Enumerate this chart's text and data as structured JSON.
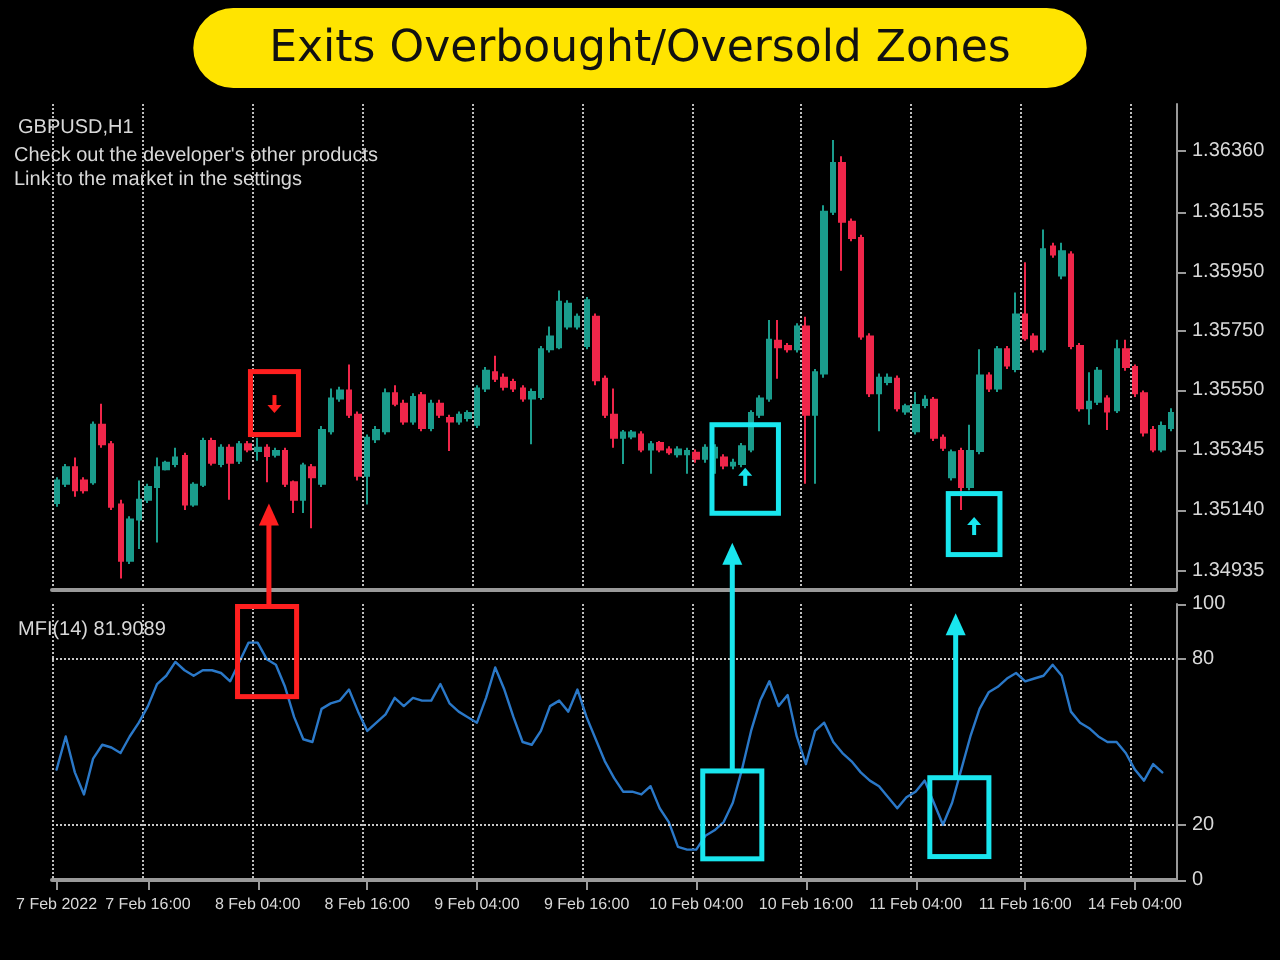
{
  "chart_data": [
    {
      "type": "candlestick",
      "title": "Exits Overbought/Oversold Zones",
      "subtitle": "GBPUSD,H1",
      "annotations": [
        "Check out the developer's other products",
        "Link to the market in the settings"
      ],
      "categories": [
        null,
        null,
        null,
        null,
        null,
        null,
        null,
        null,
        null,
        null,
        null,
        null,
        null,
        null,
        null,
        null,
        null,
        null,
        null,
        null,
        null,
        null,
        null,
        null,
        null,
        null,
        null,
        null,
        null,
        null,
        null,
        null,
        null,
        null,
        null,
        null,
        null,
        null,
        null,
        null,
        null,
        null,
        null,
        null,
        null,
        null,
        null,
        null,
        null,
        null,
        null,
        null,
        null,
        null,
        null,
        null,
        null,
        null,
        null,
        null,
        null,
        null,
        null,
        null,
        null,
        null,
        null,
        null,
        null,
        null,
        null,
        null,
        null,
        null,
        null,
        null,
        null,
        null,
        null,
        null,
        null,
        null,
        null,
        null,
        null,
        null,
        null,
        null,
        null,
        null,
        null,
        null,
        null,
        null,
        null,
        null,
        null,
        null,
        null,
        null,
        null,
        null,
        null,
        null,
        null,
        null,
        null,
        null,
        null,
        null,
        null,
        null,
        null,
        null,
        null,
        null,
        null,
        null,
        null,
        null,
        null,
        null,
        null
      ],
      "ohlc": [
        [
          1.35165,
          1.35253,
          1.35153,
          1.35242
        ],
        [
          1.35231,
          1.35298,
          1.3522,
          1.35287
        ],
        [
          1.35287,
          1.3532,
          1.35187,
          1.35209
        ],
        [
          1.35242,
          1.35253,
          1.35198,
          1.35209
        ],
        [
          1.35236,
          1.35442,
          1.35227,
          1.35431
        ],
        [
          1.35431,
          1.35502,
          1.35353,
          1.35365
        ],
        [
          1.35365,
          1.35376,
          1.35142,
          1.35153
        ],
        [
          1.3516,
          1.35176,
          1.34909,
          1.34969
        ],
        [
          1.34969,
          1.3512,
          1.34958,
          1.35109
        ],
        [
          1.35109,
          1.35242,
          1.35009,
          1.35176
        ],
        [
          1.35176,
          1.35231,
          1.35165,
          1.3522
        ],
        [
          1.3522,
          1.3532,
          1.35031,
          1.35287
        ],
        [
          1.3528,
          1.35309,
          1.35276,
          1.35302
        ],
        [
          1.35298,
          1.35353,
          1.35287,
          1.3532
        ],
        [
          1.35325,
          1.35336,
          1.35142,
          1.3516
        ],
        [
          1.3516,
          1.35236,
          1.35153,
          1.35227
        ],
        [
          1.35227,
          1.35387,
          1.3522,
          1.35376
        ],
        [
          1.35376,
          1.35387,
          1.35293,
          1.35302
        ],
        [
          1.35298,
          1.35365,
          1.35287,
          1.35353
        ],
        [
          1.35353,
          1.35365,
          1.35176,
          1.35302
        ],
        [
          1.35309,
          1.35376,
          1.35298,
          1.35365
        ],
        [
          1.35365,
          1.35376,
          1.35338,
          1.35347
        ],
        [
          1.35342,
          1.35387,
          1.35309,
          1.35353
        ],
        [
          1.35353,
          1.35365,
          1.35236,
          1.35325
        ],
        [
          1.35329,
          1.35353,
          1.3532,
          1.35342
        ],
        [
          1.35342,
          1.35353,
          1.3522,
          1.35231
        ],
        [
          1.35236,
          1.35242,
          1.35131,
          1.35176
        ],
        [
          1.35176,
          1.35302,
          1.35131,
          1.35293
        ],
        [
          1.35287,
          1.35298,
          1.3508,
          1.35253
        ],
        [
          1.35231,
          1.35427,
          1.3522,
          1.35413
        ],
        [
          1.35409,
          1.35554,
          1.35398,
          1.3552
        ],
        [
          1.3552,
          1.3556,
          1.35509,
          1.35547
        ],
        [
          1.35547,
          1.35636,
          1.35454,
          1.35465
        ],
        [
          1.35465,
          1.35476,
          1.35242,
          1.35258
        ],
        [
          1.35258,
          1.35398,
          1.3516,
          1.35387
        ],
        [
          1.35382,
          1.35427,
          1.35369,
          1.35413
        ],
        [
          1.35409,
          1.35554,
          1.35398,
          1.35538
        ],
        [
          1.35538,
          1.35565,
          1.35494,
          1.35502
        ],
        [
          1.35502,
          1.35516,
          1.35431,
          1.35442
        ],
        [
          1.35442,
          1.35538,
          1.35431,
          1.35525
        ],
        [
          1.35531,
          1.35542,
          1.35409,
          1.3542
        ],
        [
          1.3542,
          1.35516,
          1.35409,
          1.35502
        ],
        [
          1.35502,
          1.35516,
          1.35454,
          1.35465
        ],
        [
          1.35454,
          1.35465,
          1.35342,
          1.35442
        ],
        [
          1.35442,
          1.35476,
          1.35431,
          1.35465
        ],
        [
          1.35454,
          1.3548,
          1.35442,
          1.35471
        ],
        [
          1.35431,
          1.35565,
          1.3542,
          1.35554
        ],
        [
          1.35554,
          1.35627,
          1.35542,
          1.35614
        ],
        [
          1.35609,
          1.35665,
          1.35576,
          1.35587
        ],
        [
          1.35591,
          1.35605,
          1.35547,
          1.3556
        ],
        [
          1.35576,
          1.35587,
          1.35542,
          1.35554
        ],
        [
          1.35554,
          1.35565,
          1.35509,
          1.3552
        ],
        [
          1.3552,
          1.35554,
          1.35365,
          1.35542
        ],
        [
          1.35525,
          1.35698,
          1.35516,
          1.35687
        ],
        [
          1.35687,
          1.35765,
          1.35676,
          1.35731
        ],
        [
          1.35694,
          1.35887,
          1.35687,
          1.35849
        ],
        [
          1.35765,
          1.35854,
          1.35754,
          1.35842
        ],
        [
          1.35765,
          1.35809,
          1.35754,
          1.35798
        ],
        [
          1.35698,
          1.35865,
          1.35687,
          1.35854
        ],
        [
          1.35798,
          1.35809,
          1.35565,
          1.35582
        ],
        [
          1.35587,
          1.35598,
          1.35454,
          1.35465
        ],
        [
          1.35465,
          1.35554,
          1.35353,
          1.35387
        ],
        [
          1.35387,
          1.35413,
          1.35298,
          1.35405
        ],
        [
          1.35391,
          1.35413,
          1.35382,
          1.35405
        ],
        [
          1.35398,
          1.35409,
          1.35338,
          1.35347
        ],
        [
          1.35347,
          1.35376,
          1.35265,
          1.35365
        ],
        [
          1.35369,
          1.35376,
          1.35338,
          1.35347
        ],
        [
          1.35347,
          1.35358,
          1.35329,
          1.35338
        ],
        [
          1.35331,
          1.35358,
          1.3532,
          1.35347
        ],
        [
          1.35331,
          1.35353,
          1.35265,
          1.35342
        ],
        [
          1.35336,
          1.35347,
          1.35302,
          1.35316
        ],
        [
          1.35316,
          1.35365,
          1.35302,
          1.35353
        ],
        [
          1.3532,
          1.35365,
          1.35265,
          1.35353
        ],
        [
          1.3532,
          1.35331,
          1.3528,
          1.35293
        ],
        [
          1.35293,
          1.35316,
          1.3528,
          1.35302
        ],
        [
          1.35298,
          1.35369,
          1.35287,
          1.35358
        ],
        [
          1.35347,
          1.3548,
          1.35338,
          1.35471
        ],
        [
          1.35465,
          1.35531,
          1.35454,
          1.3552
        ],
        [
          1.3552,
          1.35787,
          1.35509,
          1.3572
        ],
        [
          1.35716,
          1.35787,
          1.35587,
          1.35694
        ],
        [
          1.35698,
          1.35709,
          1.35676,
          1.35687
        ],
        [
          1.35687,
          1.35776,
          1.35676,
          1.35765
        ],
        [
          1.35765,
          1.35798,
          1.35231,
          1.35465
        ],
        [
          1.35465,
          1.3562,
          1.35231,
          1.35609
        ],
        [
          1.35605,
          1.36176,
          1.35591,
          1.36154
        ],
        [
          1.36154,
          1.36398,
          1.36143,
          1.3632
        ],
        [
          1.3632,
          1.36343,
          1.35954,
          1.3612
        ],
        [
          1.3612,
          1.36131,
          1.36054,
          1.36065
        ],
        [
          1.36065,
          1.36076,
          1.3572,
          1.35731
        ],
        [
          1.35731,
          1.35742,
          1.35525,
          1.35538
        ],
        [
          1.35538,
          1.35605,
          1.35409,
          1.35591
        ],
        [
          1.35576,
          1.35605,
          1.35565,
          1.35591
        ],
        [
          1.35587,
          1.35598,
          1.35476,
          1.35487
        ],
        [
          1.35476,
          1.35502,
          1.35465,
          1.35494
        ],
        [
          1.35409,
          1.35542,
          1.35398,
          1.35498
        ],
        [
          1.35498,
          1.35531,
          1.35487,
          1.35516
        ],
        [
          1.35516,
          1.35525,
          1.35376,
          1.35387
        ],
        [
          1.35387,
          1.35398,
          1.35342,
          1.35353
        ],
        [
          1.35253,
          1.35347,
          1.35242,
          1.35338
        ],
        [
          1.35342,
          1.35353,
          1.35142,
          1.3522
        ],
        [
          1.3522,
          1.35431,
          1.35209,
          1.35342
        ],
        [
          1.35342,
          1.35687,
          1.35331,
          1.35598
        ],
        [
          1.35598,
          1.35609,
          1.35542,
          1.35554
        ],
        [
          1.35554,
          1.35698,
          1.35542,
          1.35687
        ],
        [
          1.35687,
          1.35698,
          1.3562,
          1.35632
        ],
        [
          1.3562,
          1.3588,
          1.35609,
          1.35805
        ],
        [
          1.35805,
          1.35983,
          1.35716,
          1.35725
        ],
        [
          1.35731,
          1.35742,
          1.35676,
          1.35687
        ],
        [
          1.35687,
          1.36094,
          1.35676,
          1.36027
        ],
        [
          1.36036,
          1.36049,
          1.35998,
          1.36009
        ],
        [
          1.35938,
          1.36049,
          1.35925,
          1.3602
        ],
        [
          1.36009,
          1.3602,
          1.35687,
          1.35698
        ],
        [
          1.35698,
          1.35709,
          1.35476,
          1.35487
        ],
        [
          1.35487,
          1.35609,
          1.35431,
          1.35509
        ],
        [
          1.35509,
          1.35627,
          1.35498,
          1.35614
        ],
        [
          1.3552,
          1.35531,
          1.35413,
          1.35476
        ],
        [
          1.3548,
          1.3572,
          1.35471,
          1.35687
        ],
        [
          1.35687,
          1.3572,
          1.35614,
          1.35627
        ],
        [
          1.35627,
          1.35636,
          1.35525,
          1.35538
        ],
        [
          1.35538,
          1.35547,
          1.35391,
          1.35405
        ],
        [
          1.35413,
          1.35427,
          1.35338,
          1.35347
        ],
        [
          1.35347,
          1.35442,
          1.35338,
          1.35427
        ],
        [
          1.3542,
          1.35487,
          1.35409,
          1.35471
        ]
      ],
      "colors": [
        "#1a9c8c",
        "#1a9c8c",
        "#f0264a",
        "#f0264a",
        "#1a9c8c",
        "#f0264a",
        "#f0264a",
        "#f0264a",
        "#1a9c8c",
        "#1a9c8c",
        "#1a9c8c",
        "#1a9c8c",
        "#1a9c8c",
        "#1a9c8c",
        "#f0264a",
        "#1a9c8c",
        "#1a9c8c",
        "#f0264a",
        "#1a9c8c",
        "#f0264a",
        "#1a9c8c",
        "#f0264a",
        "#1a9c8c",
        "#f0264a",
        "#1a9c8c",
        "#f0264a",
        "#f0264a",
        "#1a9c8c",
        "#f0264a",
        "#1a9c8c",
        "#1a9c8c",
        "#1a9c8c",
        "#f0264a",
        "#f0264a",
        "#1a9c8c",
        "#1a9c8c",
        "#1a9c8c",
        "#f0264a",
        "#f0264a",
        "#1a9c8c",
        "#f0264a",
        "#1a9c8c",
        "#f0264a",
        "#f0264a",
        "#1a9c8c",
        "#1a9c8c",
        "#1a9c8c",
        "#1a9c8c",
        "#f0264a",
        "#f0264a",
        "#f0264a",
        "#f0264a",
        "#1a9c8c",
        "#1a9c8c",
        "#1a9c8c",
        "#1a9c8c",
        "#1a9c8c",
        "#1a9c8c",
        "#1a9c8c",
        "#f0264a",
        "#f0264a",
        "#f0264a",
        "#1a9c8c",
        "#1a9c8c",
        "#f0264a",
        "#1a9c8c",
        "#f0264a",
        "#f0264a",
        "#1a9c8c",
        "#1a9c8c",
        "#f0264a",
        "#1a9c8c",
        "#1a9c8c",
        "#f0264a",
        "#1a9c8c",
        "#1a9c8c",
        "#1a9c8c",
        "#1a9c8c",
        "#1a9c8c",
        "#f0264a",
        "#f0264a",
        "#1a9c8c",
        "#f0264a",
        "#1a9c8c",
        "#1a9c8c",
        "#1a9c8c",
        "#f0264a",
        "#f0264a",
        "#f0264a",
        "#f0264a",
        "#1a9c8c",
        "#1a9c8c",
        "#f0264a",
        "#1a9c8c",
        "#1a9c8c",
        "#1a9c8c",
        "#f0264a",
        "#f0264a",
        "#1a9c8c",
        "#f0264a",
        "#1a9c8c",
        "#1a9c8c",
        "#f0264a",
        "#1a9c8c",
        "#f0264a",
        "#1a9c8c",
        "#f0264a",
        "#f0264a",
        "#1a9c8c",
        "#f0264a",
        "#1a9c8c",
        "#f0264a",
        "#f0264a",
        "#1a9c8c",
        "#1a9c8c",
        "#f0264a",
        "#1a9c8c",
        "#f0264a",
        "#f0264a",
        "#f0264a",
        "#f0264a",
        "#1a9c8c",
        "#1a9c8c"
      ],
      "ylim": [
        1.3487,
        1.3652
      ],
      "yticks": [
        {
          "value": 1.3636,
          "label": "1.36360"
        },
        1.36155,
        {
          "value": 1.3595,
          "label": "1.35950"
        },
        {
          "value": 1.3575,
          "label": "1.35750"
        },
        {
          "value": 1.3555,
          "label": "1.35550"
        },
        1.35345,
        {
          "value": 1.3514,
          "label": "1.35140"
        },
        1.34935
      ],
      "tick_labels": "y",
      "grid": "x"
    },
    {
      "type": "line",
      "title": "MFI(14) 81.9089",
      "categories": [
        "7 Feb 2022",
        null,
        null,
        null,
        null,
        null,
        null,
        null,
        null,
        null,
        "7 Feb 16:00",
        null,
        null,
        null,
        null,
        null,
        null,
        null,
        null,
        null,
        null,
        null,
        "8 Feb 04:00",
        null,
        null,
        null,
        null,
        null,
        null,
        null,
        null,
        null,
        null,
        null,
        "8 Feb 16:00",
        null,
        null,
        null,
        null,
        null,
        null,
        null,
        null,
        null,
        null,
        null,
        "9 Feb 04:00",
        null,
        null,
        null,
        null,
        null,
        null,
        null,
        null,
        null,
        null,
        null,
        "9 Feb 16:00",
        null,
        null,
        null,
        null,
        null,
        null,
        null,
        null,
        null,
        null,
        null,
        "10 Feb 04:00",
        null,
        null,
        null,
        null,
        null,
        null,
        null,
        null,
        null,
        null,
        null,
        "10 Feb 16:00",
        null,
        null,
        null,
        null,
        null,
        null,
        null,
        null,
        null,
        null,
        null,
        "11 Feb 04:00",
        null,
        null,
        null,
        null,
        null,
        null,
        null,
        null,
        null,
        null,
        null,
        "11 Feb 16:00",
        null,
        null,
        null,
        null,
        null,
        null,
        null,
        null,
        null,
        null,
        null,
        "14 Feb 04:00",
        null,
        null,
        null,
        null
      ],
      "series": [
        {
          "color": "#2a78c8",
          "values": [
            40,
            52,
            39,
            31,
            44,
            49,
            48,
            46,
            52,
            57,
            63,
            71,
            74,
            79,
            76,
            74,
            76,
            76,
            75,
            72,
            79,
            86,
            86,
            80,
            78,
            70,
            59,
            51,
            50,
            62,
            64,
            65,
            69,
            61,
            54,
            57,
            60,
            66,
            63,
            66,
            65,
            65,
            71,
            64,
            61,
            59,
            57,
            66,
            77,
            69,
            59,
            50,
            49,
            54,
            63,
            65,
            61,
            69,
            59,
            51,
            43,
            37,
            32,
            32,
            31,
            34,
            26,
            21,
            12,
            11,
            11,
            16,
            18,
            21,
            28,
            40,
            54,
            65,
            72,
            63,
            67,
            52,
            42,
            54,
            57,
            50,
            46,
            43,
            39,
            36,
            34,
            30,
            26,
            30,
            32,
            36,
            28,
            20,
            28,
            40,
            52,
            62,
            68,
            70,
            73,
            75,
            72,
            73,
            74,
            78,
            74,
            61,
            57,
            55,
            52,
            50,
            50,
            46,
            40,
            36,
            42,
            39,
            null
          ]
        }
      ],
      "ylim": [
        0,
        100
      ],
      "yticks": [
        0,
        20,
        80,
        100
      ],
      "grid": "x",
      "ref_lines": [
        {
          "axis": "y",
          "value": 80,
          "color": "#c8c8c8",
          "line_style": "dotted"
        },
        {
          "axis": "y",
          "value": 20,
          "color": "#c8c8c8",
          "line_style": "dotted"
        }
      ]
    }
  ]
}
